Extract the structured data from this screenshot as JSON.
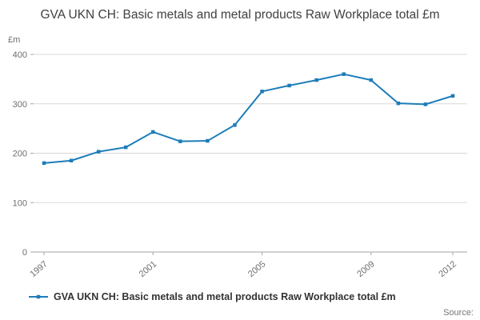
{
  "title": "GVA UKN CH: Basic metals and metal products Raw Workplace total £m",
  "y_unit_label": "£m",
  "source_label": "Source:",
  "legend": {
    "label": "GVA UKN CH: Basic metals and metal products Raw Workplace total £m"
  },
  "colors": {
    "line": "#1d7db9",
    "grid": "#d9d9d9",
    "axis": "#a6a6a6",
    "tick_text": "#6e6e6e"
  },
  "chart_data": {
    "type": "line",
    "title": "GVA UKN CH: Basic metals and metal products Raw Workplace total £m",
    "xlabel": "",
    "ylabel": "£m",
    "x": [
      1997,
      1998,
      1999,
      2000,
      2001,
      2002,
      2003,
      2004,
      2005,
      2006,
      2007,
      2008,
      2009,
      2010,
      2011,
      2012
    ],
    "values": [
      180,
      185,
      203,
      212,
      243,
      224,
      225,
      257,
      325,
      337,
      348,
      360,
      348,
      301,
      299,
      316
    ],
    "ylim": [
      0,
      400
    ],
    "yticks": [
      0,
      100,
      200,
      300,
      400
    ],
    "xtick_labels": [
      1997,
      2001,
      2005,
      2009,
      2012
    ],
    "grid": true,
    "legend_position": "bottom-left",
    "marker": "square"
  }
}
